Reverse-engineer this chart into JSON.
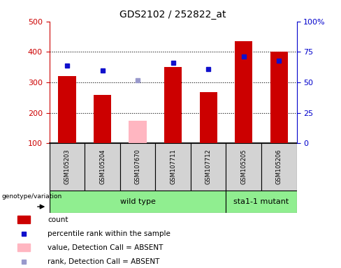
{
  "title": "GDS2102 / 252822_at",
  "samples": [
    "GSM105203",
    "GSM105204",
    "GSM107670",
    "GSM107711",
    "GSM107712",
    "GSM105205",
    "GSM105206"
  ],
  "count_values": [
    320,
    260,
    null,
    350,
    267,
    435,
    400
  ],
  "count_absent": [
    null,
    null,
    175,
    null,
    null,
    null,
    null
  ],
  "rank_values": [
    64,
    60,
    null,
    66,
    61,
    71,
    68
  ],
  "rank_absent": [
    null,
    null,
    52,
    null,
    null,
    null,
    null
  ],
  "ylim_left": [
    100,
    500
  ],
  "ylim_right": [
    0,
    100
  ],
  "yticks_left": [
    100,
    200,
    300,
    400,
    500
  ],
  "yticks_right": [
    0,
    25,
    50,
    75,
    100
  ],
  "yticklabels_right": [
    "0",
    "25",
    "50",
    "75",
    "100%"
  ],
  "bar_color_present": "#CC0000",
  "bar_color_absent": "#FFB6C1",
  "square_color_present": "#1010CC",
  "square_color_absent": "#9999CC",
  "bar_width": 0.5,
  "background_plot": "#ffffff",
  "background_sample": "#d3d3d3",
  "group_color": "#90EE90",
  "legend_items": [
    {
      "label": "count",
      "color": "#CC0000",
      "type": "bar"
    },
    {
      "label": "percentile rank within the sample",
      "color": "#1010CC",
      "type": "square"
    },
    {
      "label": "value, Detection Call = ABSENT",
      "color": "#FFB6C1",
      "type": "bar"
    },
    {
      "label": "rank, Detection Call = ABSENT",
      "color": "#9999CC",
      "type": "square"
    }
  ],
  "grid_lines": [
    200,
    300,
    400
  ],
  "left_spine_color": "#CC0000",
  "right_spine_color": "#0000CC"
}
